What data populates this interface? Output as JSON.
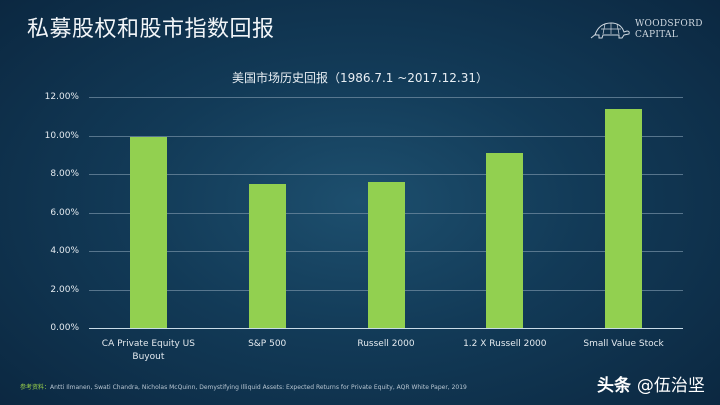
{
  "header": {
    "title": "私募股权和股市指数回报",
    "logo_line1": "WOODSFORD",
    "logo_line2": "CAPITAL"
  },
  "chart_data": {
    "type": "bar",
    "title": "美国市场历史回报（1986.7.1 ~2017.12.31）",
    "categories": [
      "CA Private Equity US Buyout",
      "S&P 500",
      "Russell 2000",
      "1.2 X Russell 2000",
      "Small Value Stock"
    ],
    "category_lines": [
      [
        "CA Private Equity US",
        "Buyout"
      ],
      [
        "S&P 500"
      ],
      [
        "Russell 2000"
      ],
      [
        "1.2 X Russell 2000"
      ],
      [
        "Small Value Stock"
      ]
    ],
    "values": [
      9.9,
      7.5,
      7.6,
      9.1,
      11.4
    ],
    "value_unit": "%",
    "ylim": [
      0,
      12
    ],
    "yticks": [
      "0.00%",
      "2.00%",
      "4.00%",
      "6.00%",
      "8.00%",
      "10.00%",
      "12.00%"
    ],
    "xlabel": "",
    "ylabel": "",
    "grid": true,
    "legend": "none",
    "bar_color": "#92d050"
  },
  "footer": {
    "source_lead": "参考资料：",
    "source_text": "Antti Ilmanen,  Swati Chandra,  Nicholas McQuinn, Demystifying Illiquid Assets: Expected  Returns for Private Equity,  AQR White Paper, 2019",
    "watermark_platform": "头条",
    "watermark_author": "@伍治坚"
  }
}
